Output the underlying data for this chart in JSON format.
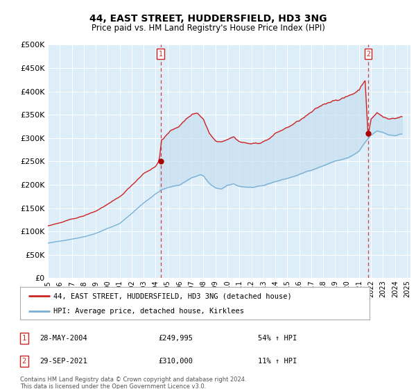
{
  "title": "44, EAST STREET, HUDDERSFIELD, HD3 3NG",
  "subtitle": "Price paid vs. HM Land Registry's House Price Index (HPI)",
  "legend_line1": "44, EAST STREET, HUDDERSFIELD, HD3 3NG (detached house)",
  "legend_line2": "HPI: Average price, detached house, Kirklees",
  "footnote": "Contains HM Land Registry data © Crown copyright and database right 2024.\nThis data is licensed under the Open Government Licence v3.0.",
  "sale1_label": "1",
  "sale1_date": "28-MAY-2004",
  "sale1_price": "£249,995",
  "sale1_hpi": "54% ↑ HPI",
  "sale2_label": "2",
  "sale2_date": "29-SEP-2021",
  "sale2_price": "£310,000",
  "sale2_hpi": "11% ↑ HPI",
  "hpi_color": "#7ab0d4",
  "price_color": "#cc2222",
  "fill_color": "#c8dff0",
  "bg_color": "#ddeef8",
  "grid_color": "#ffffff",
  "sale_marker_color": "#aa0000",
  "ylim": [
    0,
    500000
  ],
  "yticks": [
    0,
    50000,
    100000,
    150000,
    200000,
    250000,
    300000,
    350000,
    400000,
    450000,
    500000
  ],
  "xlim_left": 1995,
  "xlim_right": 2025.3
}
